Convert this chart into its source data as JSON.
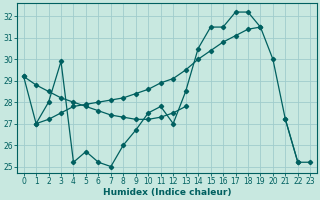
{
  "xlabel": "Humidex (Indice chaleur)",
  "background_color": "#c8e8e0",
  "grid_color": "#a0cccc",
  "line_color": "#006060",
  "xlim": [
    -0.5,
    23.5
  ],
  "ylim": [
    24.7,
    32.6
  ],
  "yticks": [
    25,
    26,
    27,
    28,
    29,
    30,
    31,
    32
  ],
  "xticks": [
    0,
    1,
    2,
    3,
    4,
    5,
    6,
    7,
    8,
    9,
    10,
    11,
    12,
    13,
    14,
    15,
    16,
    17,
    18,
    19,
    20,
    21,
    22,
    23
  ],
  "line1_x": [
    0,
    1,
    2,
    3,
    4,
    5,
    6,
    7,
    8,
    9,
    10,
    11,
    12,
    13,
    14,
    15,
    16,
    17,
    18,
    19,
    20,
    21,
    22
  ],
  "line1_y": [
    29.2,
    27.0,
    28.0,
    29.9,
    25.2,
    25.7,
    25.2,
    25.0,
    26.0,
    26.7,
    27.5,
    27.8,
    27.0,
    28.5,
    30.5,
    31.5,
    31.5,
    32.2,
    32.2,
    31.5,
    30.0,
    27.2,
    25.2
  ],
  "line2_x": [
    1,
    2,
    3,
    4,
    5,
    6,
    7,
    8,
    9,
    10,
    11,
    12,
    13,
    14,
    15,
    16,
    17,
    18,
    19
  ],
  "line2_y": [
    27.0,
    27.2,
    27.5,
    27.8,
    27.9,
    28.0,
    28.1,
    28.2,
    28.4,
    28.6,
    28.9,
    29.1,
    29.5,
    30.0,
    30.4,
    30.8,
    31.1,
    31.4,
    31.5
  ],
  "line3_x": [
    0,
    1,
    2,
    3,
    4,
    5,
    6,
    7,
    8,
    9,
    10,
    11,
    12,
    13
  ],
  "line3_y": [
    29.2,
    28.8,
    28.5,
    28.2,
    28.0,
    27.8,
    27.6,
    27.4,
    27.3,
    27.2,
    27.2,
    27.3,
    27.5,
    27.8
  ],
  "line4_x": [
    21,
    22,
    23
  ],
  "line4_y": [
    27.2,
    25.2,
    25.2
  ]
}
